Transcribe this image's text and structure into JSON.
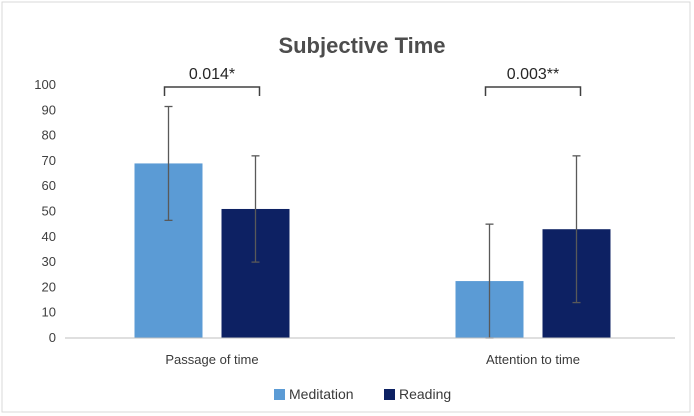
{
  "chart_data": {
    "type": "bar",
    "title": "Subjective Time",
    "categories": [
      "Passage of time",
      "Attention to time"
    ],
    "series": [
      {
        "name": "Meditation",
        "color": "#5b9bd5",
        "values": [
          69,
          22.5
        ],
        "error": [
          22.5,
          22.5
        ]
      },
      {
        "name": "Reading",
        "color": "#0d2163",
        "values": [
          51,
          43
        ],
        "error": [
          21,
          29
        ]
      }
    ],
    "ylim": [
      0,
      100
    ],
    "yticks": [
      0,
      10,
      20,
      30,
      40,
      50,
      60,
      70,
      80,
      90,
      100
    ],
    "grid": false,
    "legend": "bottom",
    "annotations": [
      {
        "category": "Passage of time",
        "text": "0.014*"
      },
      {
        "category": "Attention to time",
        "text": "0.003**"
      }
    ]
  }
}
